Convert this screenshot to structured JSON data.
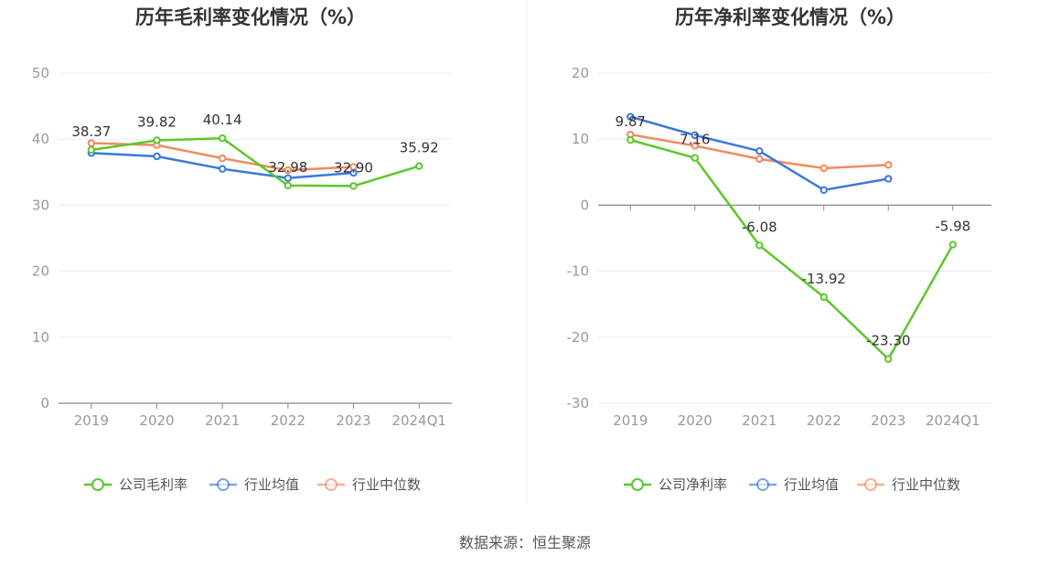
{
  "source": "数据来源：恒生聚源",
  "legend_colors": {
    "company": "#5ec72b",
    "avg": "#3a77e0",
    "median": "#f08a5e"
  },
  "chart_data": [
    {
      "type": "line",
      "title": "历年毛利率变化情况（%）",
      "categories": [
        "2019",
        "2020",
        "2021",
        "2022",
        "2023",
        "2024Q1"
      ],
      "ylim": [
        0,
        50
      ],
      "yticks": [
        0,
        10,
        20,
        30,
        40,
        50
      ],
      "grid": true,
      "legend_position": "bottom",
      "series": [
        {
          "name": "公司毛利率",
          "key": "company",
          "values": [
            38.37,
            39.82,
            40.14,
            32.98,
            32.9,
            35.92
          ],
          "labels": [
            "38.37",
            "39.82",
            "40.14",
            "32.98",
            "32.90",
            "35.92"
          ]
        },
        {
          "name": "行业均值",
          "key": "avg",
          "values": [
            37.9,
            37.4,
            35.5,
            34.1,
            34.9,
            null
          ]
        },
        {
          "name": "行业中位数",
          "key": "median",
          "values": [
            39.4,
            39.1,
            37.1,
            35.3,
            35.8,
            null
          ]
        }
      ]
    },
    {
      "type": "line",
      "title": "历年净利率变化情况（%）",
      "categories": [
        "2019",
        "2020",
        "2021",
        "2022",
        "2023",
        "2024Q1"
      ],
      "ylim": [
        -30,
        20
      ],
      "yticks": [
        -30,
        -20,
        -10,
        0,
        10,
        20
      ],
      "grid": true,
      "legend_position": "bottom",
      "series": [
        {
          "name": "公司净利率",
          "key": "company",
          "values": [
            9.87,
            7.16,
            -6.08,
            -13.92,
            -23.3,
            -5.98
          ],
          "labels": [
            "9.87",
            "7.16",
            "-6.08",
            "-13.92",
            "-23.30",
            "-5.98"
          ]
        },
        {
          "name": "行业均值",
          "key": "avg",
          "values": [
            13.4,
            10.6,
            8.2,
            2.3,
            4.0,
            null
          ]
        },
        {
          "name": "行业中位数",
          "key": "median",
          "values": [
            10.7,
            9.0,
            7.0,
            5.6,
            6.1,
            null
          ]
        }
      ]
    }
  ]
}
